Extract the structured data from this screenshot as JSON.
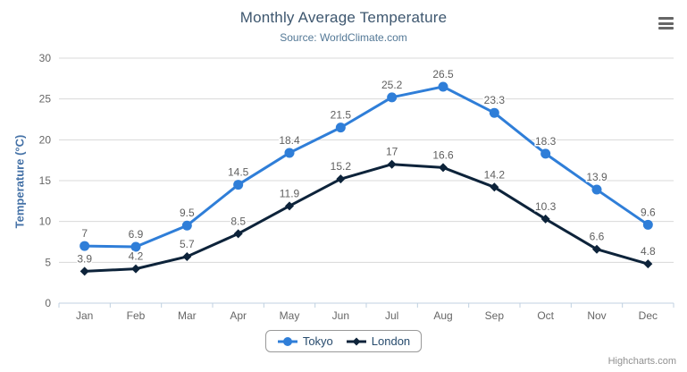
{
  "chart": {
    "title": "Monthly Average Temperature",
    "subtitle": "Source: WorldClimate.com",
    "credits": "Highcharts.com",
    "export_menu_icon": "hamburger-menu-icon"
  },
  "chart_data": {
    "type": "line",
    "title": "Monthly Average Temperature",
    "subtitle": "Source: WorldClimate.com",
    "xlabel": "",
    "ylabel": "Temperature (°C)",
    "categories": [
      "Jan",
      "Feb",
      "Mar",
      "Apr",
      "May",
      "Jun",
      "Jul",
      "Aug",
      "Sep",
      "Oct",
      "Nov",
      "Dec"
    ],
    "ylim": [
      0,
      30
    ],
    "yticks": [
      0,
      5,
      10,
      15,
      20,
      25,
      30
    ],
    "grid": true,
    "legend_position": "bottom-center",
    "data_labels": true,
    "series": [
      {
        "name": "Tokyo",
        "color": "#2f7ed8",
        "marker": "circle",
        "values": [
          7,
          6.9,
          9.5,
          14.5,
          18.4,
          21.5,
          25.2,
          26.5,
          23.3,
          18.3,
          13.9,
          9.6
        ]
      },
      {
        "name": "London",
        "color": "#0d233a",
        "marker": "diamond",
        "values": [
          3.9,
          4.2,
          5.7,
          8.5,
          11.9,
          15.2,
          17,
          16.6,
          14.2,
          10.3,
          6.6,
          4.8
        ]
      }
    ],
    "colors": {
      "title": "#3E576F",
      "subtitle": "#537896",
      "axis_title": "#4572A7",
      "tick_label": "#666666",
      "data_label": "#606060",
      "grid_line": "#D8D8D8",
      "axis_line": "#C0D0E0",
      "legend_border": "#999999",
      "legend_text": "#274b6d",
      "credits": "#909090"
    }
  }
}
